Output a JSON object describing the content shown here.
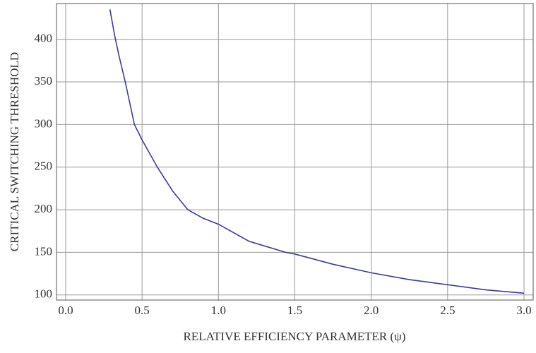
{
  "chart_data": {
    "type": "line",
    "x_label": "RELATIVE EFFICIENCY PARAMETER (ψ)",
    "y_label": "CRITICAL SWITCHING THRESHOLD",
    "x": [
      0.29,
      0.32,
      0.35,
      0.39,
      0.45,
      0.5,
      0.6,
      0.7,
      0.8,
      0.9,
      1.0,
      1.2,
      1.44,
      1.5,
      1.75,
      2.0,
      2.25,
      2.5,
      2.75,
      3.0
    ],
    "series": [
      {
        "name": null,
        "color": "#3b3b9c",
        "values": [
          435,
          405,
          380,
          350,
          300,
          282,
          250,
          222,
          200,
          190,
          183,
          163,
          150,
          148,
          136,
          126,
          118,
          112,
          106,
          102
        ]
      }
    ],
    "xlim": [
      -0.06,
      3.06
    ],
    "ylim": [
      94,
      442
    ],
    "xticks": [
      {
        "value": 0,
        "label": "0.0"
      },
      0.5,
      {
        "value": 1,
        "label": "1.0"
      },
      1.5,
      {
        "value": 2,
        "label": "2.0"
      },
      2.5,
      {
        "value": 3,
        "label": "3.0"
      }
    ],
    "yticks": [
      100,
      150,
      200,
      250,
      300,
      350,
      400
    ],
    "grid": true
  }
}
